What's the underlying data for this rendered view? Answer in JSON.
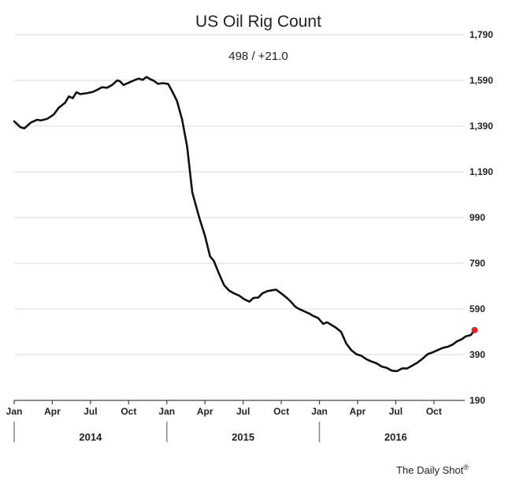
{
  "chart_data": {
    "type": "line",
    "title": "US Oil Rig Count",
    "subtitle": "498  /  +21.0",
    "source": "The Daily Shot",
    "source_mark": "®",
    "xlabel": "",
    "ylabel": "",
    "ylim": [
      190,
      1790
    ],
    "yticks": [
      "1,790",
      "1,590",
      "1,390",
      "1,190",
      "990",
      "790",
      "590",
      "390",
      "190"
    ],
    "ytick_values": [
      1790,
      1590,
      1390,
      1190,
      990,
      790,
      590,
      390,
      190
    ],
    "xticks": [
      {
        "label": "Jan",
        "month": 0
      },
      {
        "label": "Apr",
        "month": 3
      },
      {
        "label": "Jul",
        "month": 6
      },
      {
        "label": "Oct",
        "month": 9
      },
      {
        "label": "Jan",
        "month": 12
      },
      {
        "label": "Apr",
        "month": 15
      },
      {
        "label": "Jul",
        "month": 18
      },
      {
        "label": "Oct",
        "month": 21
      },
      {
        "label": "Jan",
        "month": 24
      },
      {
        "label": "Apr",
        "month": 27
      },
      {
        "label": "Jul",
        "month": 30
      },
      {
        "label": "Oct",
        "month": 33
      }
    ],
    "years": [
      {
        "label": "2014",
        "start_month": 0
      },
      {
        "label": "2015",
        "start_month": 12
      },
      {
        "label": "2016",
        "start_month": 24
      }
    ],
    "x_range_months": [
      0,
      35.3
    ],
    "grid": true,
    "colors": {
      "line": "#111111",
      "last_point": "#ff1a1a",
      "grid": "#d9d9d9"
    },
    "series": [
      {
        "values": [
          [
            0.0,
            1411
          ],
          [
            0.5,
            1385
          ],
          [
            0.8,
            1380
          ],
          [
            1.3,
            1405
          ],
          [
            1.8,
            1418
          ],
          [
            2.1,
            1415
          ],
          [
            2.6,
            1422
          ],
          [
            3.1,
            1440
          ],
          [
            3.5,
            1470
          ],
          [
            4.0,
            1492
          ],
          [
            4.3,
            1520
          ],
          [
            4.6,
            1512
          ],
          [
            4.9,
            1538
          ],
          [
            5.2,
            1530
          ],
          [
            5.8,
            1535
          ],
          [
            6.2,
            1540
          ],
          [
            6.5,
            1548
          ],
          [
            6.9,
            1560
          ],
          [
            7.3,
            1558
          ],
          [
            7.7,
            1570
          ],
          [
            8.1,
            1590
          ],
          [
            8.3,
            1587
          ],
          [
            8.6,
            1570
          ],
          [
            9.0,
            1580
          ],
          [
            9.5,
            1592
          ],
          [
            9.8,
            1598
          ],
          [
            10.1,
            1592
          ],
          [
            10.4,
            1605
          ],
          [
            10.7,
            1595
          ],
          [
            11.0,
            1588
          ],
          [
            11.3,
            1575
          ],
          [
            11.7,
            1578
          ],
          [
            12.1,
            1575
          ],
          [
            12.4,
            1545
          ],
          [
            12.8,
            1500
          ],
          [
            13.2,
            1420
          ],
          [
            13.6,
            1300
          ],
          [
            14.0,
            1100
          ],
          [
            14.3,
            1040
          ],
          [
            14.6,
            980
          ],
          [
            15.0,
            910
          ],
          [
            15.4,
            820
          ],
          [
            15.7,
            800
          ],
          [
            16.1,
            745
          ],
          [
            16.5,
            695
          ],
          [
            16.9,
            670
          ],
          [
            17.3,
            658
          ],
          [
            17.7,
            648
          ],
          [
            18.1,
            632
          ],
          [
            18.5,
            622
          ],
          [
            18.8,
            638
          ],
          [
            19.2,
            640
          ],
          [
            19.5,
            658
          ],
          [
            19.9,
            668
          ],
          [
            20.3,
            672
          ],
          [
            20.6,
            674
          ],
          [
            21.0,
            658
          ],
          [
            21.4,
            640
          ],
          [
            21.7,
            625
          ],
          [
            22.1,
            600
          ],
          [
            22.4,
            590
          ],
          [
            22.8,
            580
          ],
          [
            23.2,
            570
          ],
          [
            23.5,
            560
          ],
          [
            23.9,
            550
          ],
          [
            24.3,
            525
          ],
          [
            24.6,
            532
          ],
          [
            25.0,
            518
          ],
          [
            25.3,
            508
          ],
          [
            25.7,
            490
          ],
          [
            26.1,
            440
          ],
          [
            26.5,
            410
          ],
          [
            26.9,
            392
          ],
          [
            27.3,
            385
          ],
          [
            27.7,
            370
          ],
          [
            28.1,
            360
          ],
          [
            28.5,
            352
          ],
          [
            28.9,
            338
          ],
          [
            29.3,
            332
          ],
          [
            29.7,
            320
          ],
          [
            30.1,
            318
          ],
          [
            30.5,
            330
          ],
          [
            30.9,
            330
          ],
          [
            31.3,
            342
          ],
          [
            31.7,
            355
          ],
          [
            32.1,
            372
          ],
          [
            32.5,
            392
          ],
          [
            32.9,
            400
          ],
          [
            33.3,
            410
          ],
          [
            33.7,
            420
          ],
          [
            34.1,
            425
          ],
          [
            34.5,
            435
          ],
          [
            34.8,
            448
          ],
          [
            35.2,
            458
          ],
          [
            35.5,
            470
          ],
          [
            35.9,
            476
          ],
          [
            36.2,
            498
          ]
        ]
      }
    ]
  }
}
